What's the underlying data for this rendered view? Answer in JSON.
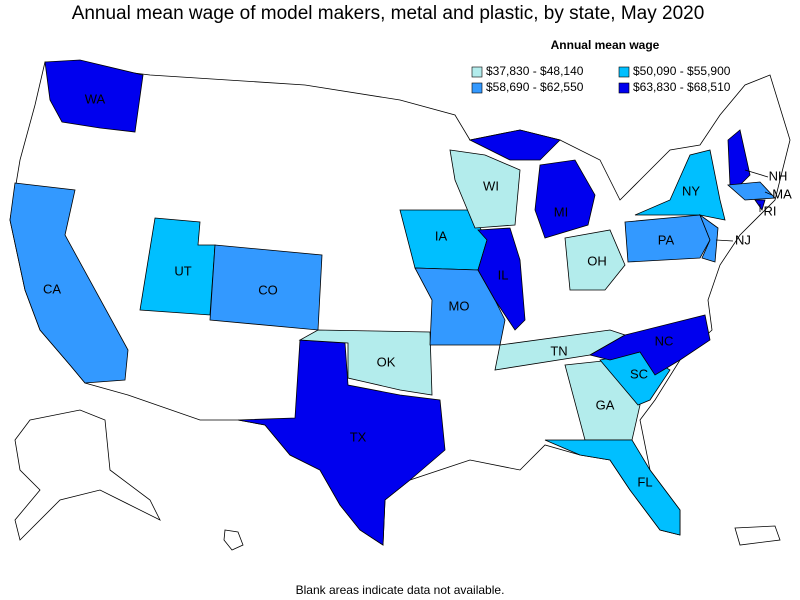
{
  "title": "Annual mean wage of model makers, metal and plastic, by state, May 2020",
  "legend": {
    "title": "Annual mean wage",
    "bins": [
      {
        "label": "$37,830 - $48,140",
        "color": "#b3ecec"
      },
      {
        "label": "$50,090 - $55,900",
        "color": "#00bfff"
      },
      {
        "label": "$58,690 - $62,550",
        "color": "#3399ff"
      },
      {
        "label": "$63,830 - $68,510",
        "color": "#0000ee"
      }
    ]
  },
  "states": [
    {
      "abbr": "WA",
      "bin": 3
    },
    {
      "abbr": "CA",
      "bin": 2
    },
    {
      "abbr": "UT",
      "bin": 1
    },
    {
      "abbr": "CO",
      "bin": 2
    },
    {
      "abbr": "TX",
      "bin": 3
    },
    {
      "abbr": "OK",
      "bin": 0
    },
    {
      "abbr": "IA",
      "bin": 1
    },
    {
      "abbr": "MO",
      "bin": 2
    },
    {
      "abbr": "IL",
      "bin": 3
    },
    {
      "abbr": "WI",
      "bin": 0
    },
    {
      "abbr": "MI",
      "bin": 3
    },
    {
      "abbr": "OH",
      "bin": 0
    },
    {
      "abbr": "TN",
      "bin": 0
    },
    {
      "abbr": "GA",
      "bin": 0
    },
    {
      "abbr": "SC",
      "bin": 1
    },
    {
      "abbr": "NC",
      "bin": 3
    },
    {
      "abbr": "FL",
      "bin": 1
    },
    {
      "abbr": "PA",
      "bin": 2
    },
    {
      "abbr": "NY",
      "bin": 1
    },
    {
      "abbr": "NJ",
      "bin": 2
    },
    {
      "abbr": "NH",
      "bin": 3
    },
    {
      "abbr": "MA",
      "bin": 2
    },
    {
      "abbr": "RI",
      "bin": 3
    }
  ],
  "footnote": "Blank areas indicate data not available."
}
